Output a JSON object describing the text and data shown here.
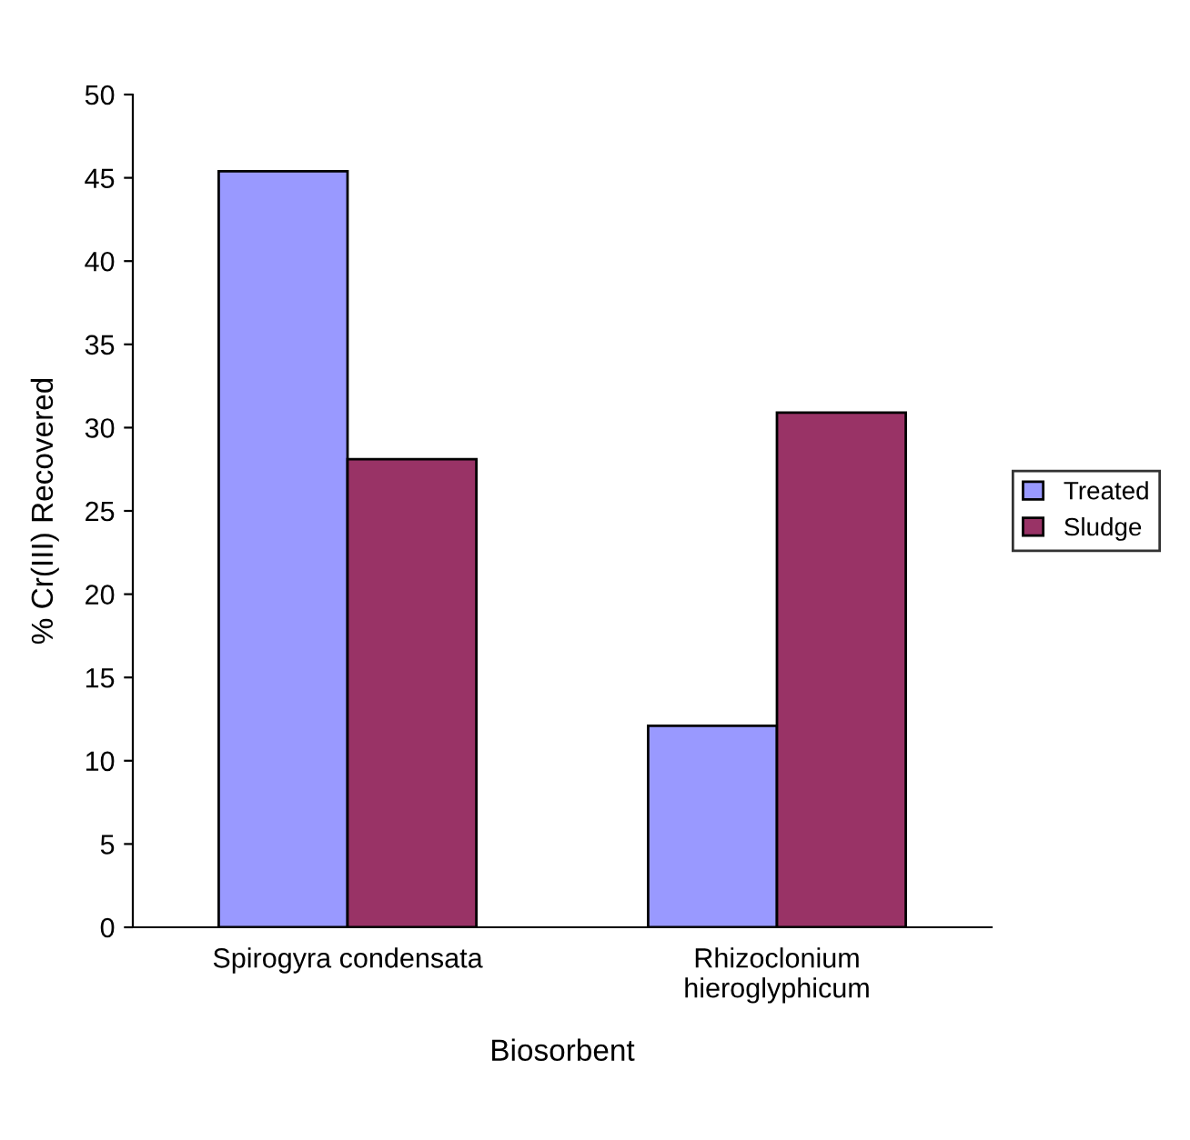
{
  "chart_data": {
    "type": "bar",
    "xlabel": "Biosorbent",
    "ylabel": "% Cr(III) Recovered",
    "categories": [
      "Spirogyra condensata",
      "Rhizoclonium\nhieroglyphicum"
    ],
    "series": [
      {
        "name": "Treated",
        "color": "#9999ff",
        "values": [
          45.4,
          12.1
        ]
      },
      {
        "name": "Sludge",
        "color": "#993366",
        "values": [
          28.1,
          30.9
        ]
      }
    ],
    "ylim": [
      0,
      50
    ],
    "yticks": [
      0,
      5,
      10,
      15,
      20,
      25,
      30,
      35,
      40,
      45,
      50
    ],
    "grid": false,
    "legend": "right"
  }
}
